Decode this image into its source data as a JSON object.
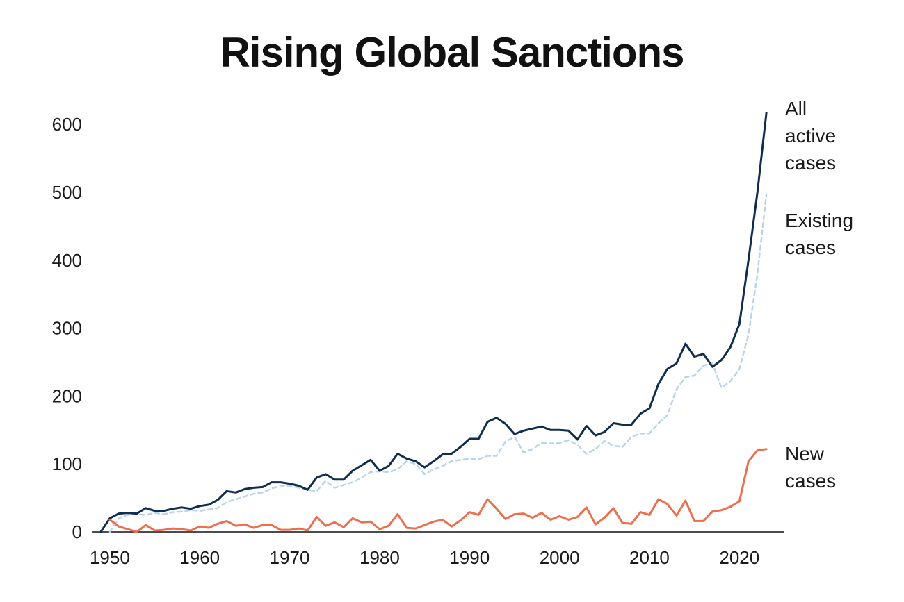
{
  "chart_data": {
    "type": "line",
    "title": "Rising Global Sanctions",
    "xlabel": "",
    "ylabel": "",
    "xlim": [
      1948,
      2025
    ],
    "ylim": [
      0,
      640
    ],
    "x_ticks": [
      1950,
      1960,
      1970,
      1980,
      1990,
      2000,
      2010,
      2020
    ],
    "y_ticks": [
      0,
      100,
      200,
      300,
      400,
      500,
      600
    ],
    "grid": false,
    "legend": "direct labels at right end of lines",
    "x": [
      1949,
      1950,
      1951,
      1952,
      1953,
      1954,
      1955,
      1956,
      1957,
      1958,
      1959,
      1960,
      1961,
      1962,
      1963,
      1964,
      1965,
      1966,
      1967,
      1968,
      1969,
      1970,
      1971,
      1972,
      1973,
      1974,
      1975,
      1976,
      1977,
      1978,
      1979,
      1980,
      1981,
      1982,
      1983,
      1984,
      1985,
      1986,
      1987,
      1988,
      1989,
      1990,
      1991,
      1992,
      1993,
      1994,
      1995,
      1996,
      1997,
      1998,
      1999,
      2000,
      2001,
      2002,
      2003,
      2004,
      2005,
      2006,
      2007,
      2008,
      2009,
      2010,
      2011,
      2012,
      2013,
      2014,
      2015,
      2016,
      2017,
      2018,
      2019,
      2020,
      2021,
      2022,
      2023
    ],
    "series": [
      {
        "name": "All active cases",
        "label_lines": [
          "All",
          "active",
          "cases"
        ],
        "color": "#0f2d4f",
        "style": "solid",
        "values": [
          0,
          20,
          27,
          28,
          27,
          35,
          31,
          31,
          34,
          36,
          34,
          38,
          40,
          47,
          60,
          58,
          63,
          65,
          66,
          73,
          73,
          71,
          68,
          62,
          80,
          85,
          77,
          77,
          90,
          98,
          106,
          90,
          97,
          115,
          108,
          104,
          95,
          104,
          114,
          115,
          125,
          137,
          137,
          162,
          168,
          159,
          144,
          149,
          152,
          155,
          150,
          150,
          149,
          136,
          156,
          142,
          147,
          160,
          158,
          158,
          174,
          182,
          218,
          240,
          248,
          277,
          258,
          262,
          243,
          253,
          272,
          306,
          400,
          500,
          617
        ]
      },
      {
        "name": "Existing cases",
        "label_lines": [
          "Existing",
          "cases"
        ],
        "color": "#b9d3ec",
        "style": "dashed",
        "values": [
          null,
          0,
          20,
          25,
          26,
          25,
          28,
          26,
          29,
          30,
          32,
          31,
          33,
          35,
          44,
          48,
          52,
          56,
          58,
          64,
          68,
          68,
          65,
          62,
          60,
          75,
          65,
          69,
          73,
          80,
          88,
          89,
          88,
          92,
          104,
          100,
          85,
          92,
          97,
          104,
          106,
          108,
          107,
          112,
          112,
          133,
          140,
          117,
          122,
          131,
          130,
          131,
          135,
          128,
          115,
          122,
          134,
          127,
          125,
          140,
          145,
          145,
          160,
          172,
          210,
          228,
          230,
          245,
          248,
          212,
          222,
          240,
          290,
          380,
          497
        ]
      },
      {
        "name": "New cases",
        "label_lines": [
          "New",
          "cases"
        ],
        "color": "#ec6e4d",
        "style": "solid",
        "values": [
          null,
          18,
          8,
          4,
          0,
          10,
          2,
          3,
          5,
          4,
          2,
          8,
          6,
          12,
          16,
          9,
          11,
          6,
          10,
          10,
          3,
          3,
          5,
          2,
          22,
          9,
          14,
          7,
          20,
          14,
          15,
          4,
          9,
          26,
          6,
          5,
          10,
          15,
          18,
          8,
          17,
          29,
          25,
          48,
          34,
          19,
          26,
          27,
          21,
          28,
          18,
          23,
          18,
          22,
          36,
          11,
          21,
          35,
          13,
          12,
          29,
          25,
          48,
          41,
          24,
          46,
          16,
          16,
          30,
          32,
          37,
          45,
          104,
          120,
          122
        ]
      }
    ]
  }
}
